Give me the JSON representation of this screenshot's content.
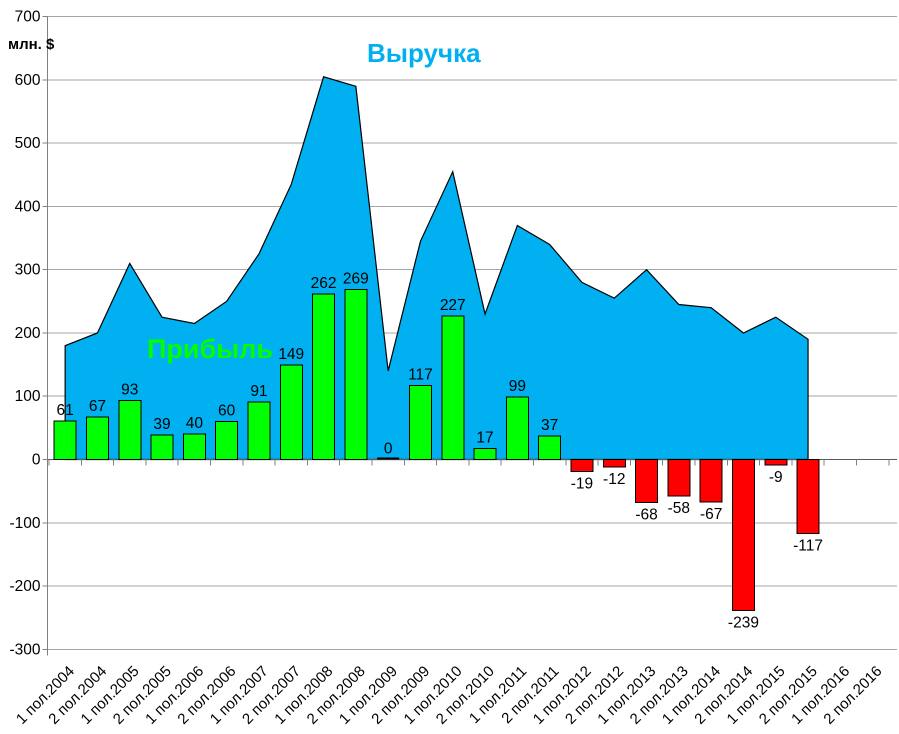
{
  "chart": {
    "unit_label": "млн. $",
    "colors": {
      "revenue_area": "#00B0F0",
      "revenue_label": "#00B0F0",
      "profit_positive": "#00FF00",
      "profit_negative": "#FF0000",
      "profit_label": "#00FF00",
      "outline": "#000000",
      "gridline": "#A6A6A6",
      "axis": "#808080",
      "zero_axis": "#595959",
      "text": "#000000"
    }
  },
  "chart_data": {
    "type": "combo-area-bar",
    "title": "",
    "xlabel": "",
    "ylabel": "млн. $",
    "ylim": [
      -300,
      700
    ],
    "ytick_step": 100,
    "grid": true,
    "legend": "floating-labels",
    "categories": [
      "1 пол.2004",
      "2 пол.2004",
      "1 пол.2005",
      "2 пол.2005",
      "1 пол.2006",
      "2 пол.2006",
      "1 пол.2007",
      "2 пол.2007",
      "1 пол.2008",
      "2 пол.2008",
      "1 пол.2009",
      "2 пол.2009",
      "1 пол.2010",
      "2 пол.2010",
      "1 пол.2011",
      "2 пол.2011",
      "1 пол.2012",
      "2 пол.2012",
      "1 пол.2013",
      "2 пол.2013",
      "1 пол.2014",
      "2 пол.2014",
      "1 пол.2015",
      "2 пол.2015",
      "1 пол.2016",
      "2 пол.2016"
    ],
    "series": [
      {
        "name": "Выручка",
        "type": "area",
        "values_estimated": true,
        "values": [
          180,
          200,
          310,
          225,
          215,
          250,
          325,
          435,
          605,
          590,
          140,
          345,
          455,
          230,
          370,
          340,
          280,
          255,
          300,
          245,
          240,
          200,
          225,
          190,
          null,
          null
        ]
      },
      {
        "name": "Прибыль",
        "type": "bar",
        "data_labels": true,
        "values": [
          61,
          67,
          93,
          39,
          40,
          60,
          91,
          149,
          262,
          269,
          0,
          117,
          227,
          17,
          99,
          37,
          -19,
          -12,
          -68,
          -58,
          -67,
          -239,
          -9,
          -117,
          null,
          null
        ]
      }
    ]
  }
}
